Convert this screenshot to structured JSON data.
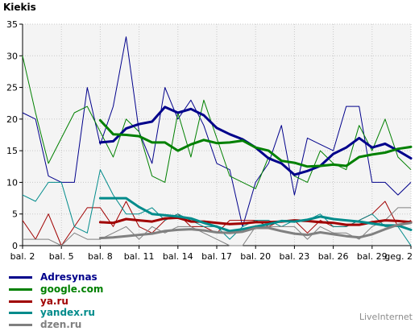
{
  "chart_data": {
    "type": "line",
    "title": "Kiekis",
    "xlabel": "",
    "ylabel": "Kiekis",
    "ylim": [
      0,
      35
    ],
    "yticks": [
      0,
      5,
      10,
      15,
      20,
      25,
      30,
      35
    ],
    "grid": true,
    "legend_position": "bottom-left",
    "x": [
      "bal. 2",
      "bal. 3",
      "bal. 4",
      "bal. 5",
      "bal. 6",
      "bal. 7",
      "bal. 8",
      "bal. 9",
      "bal. 10",
      "bal. 11",
      "bal. 12",
      "bal. 13",
      "bal. 14",
      "bal. 15",
      "bal. 16",
      "bal. 17",
      "bal. 18",
      "bal. 19",
      "bal. 20",
      "bal. 21",
      "bal. 22",
      "bal. 23",
      "bal. 24",
      "bal. 25",
      "bal. 26",
      "bal. 27",
      "bal. 28",
      "bal. 29",
      "bal. 30",
      "geg. 1",
      "geg. 2"
    ],
    "xtick_labels": [
      "bal. 2",
      "bal. 5",
      "bal. 8",
      "bal. 11",
      "bal. 14",
      "bal. 17",
      "bal. 20",
      "bal. 23",
      "bal. 26",
      "bal. 29",
      "geg. 2"
    ],
    "series": [
      {
        "name": "Adresynas",
        "color": "#00008b",
        "values": [
          21,
          20,
          11,
          10,
          10,
          25,
          16,
          22,
          33,
          18,
          13,
          25,
          20,
          23,
          19,
          13,
          12,
          3,
          10,
          13,
          19,
          8,
          17,
          16,
          15,
          22,
          22,
          10,
          10,
          8,
          10
        ],
        "avg": [
          null,
          null,
          null,
          null,
          null,
          null,
          16.3,
          16.5,
          18.5,
          19.2,
          19.6,
          21.9,
          21.0,
          21.6,
          20.6,
          18.6,
          17.6,
          16.8,
          15.5,
          13.8,
          13.0,
          11.2,
          11.8,
          12.6,
          14.5,
          15.5,
          17.0,
          15.5,
          16.1,
          15.0,
          13.8
        ]
      },
      {
        "name": "google.com",
        "color": "#008000",
        "values": [
          30,
          21,
          13,
          17,
          21,
          22,
          18,
          14,
          20,
          18,
          11,
          10,
          21,
          14,
          23,
          17,
          11,
          10,
          9,
          14,
          13,
          11,
          10,
          15,
          13,
          12,
          19,
          15,
          20,
          14,
          12
        ],
        "avg": [
          null,
          null,
          null,
          null,
          null,
          null,
          19.8,
          17.6,
          17.5,
          17.3,
          16.3,
          16.3,
          15.0,
          16.0,
          16.7,
          16.2,
          16.3,
          16.6,
          15.5,
          15.0,
          13.4,
          13.1,
          12.5,
          12.6,
          12.8,
          12.6,
          14.0,
          14.4,
          14.7,
          15.3,
          15.6
        ]
      },
      {
        "name": "ya.ru",
        "color": "#a00000",
        "values": [
          4,
          1,
          5,
          0,
          3,
          6,
          6,
          3,
          7,
          3,
          2,
          4,
          5,
          3,
          3,
          2,
          4,
          4,
          4,
          3,
          4,
          4,
          2,
          4,
          3,
          3,
          4,
          5,
          7,
          3,
          4
        ],
        "avg": [
          null,
          null,
          null,
          null,
          null,
          null,
          3.7,
          3.6,
          4.2,
          4.0,
          3.8,
          4.3,
          4.4,
          3.8,
          3.8,
          3.6,
          3.4,
          3.5,
          3.7,
          3.7,
          3.8,
          4.0,
          3.9,
          3.7,
          3.6,
          3.3,
          3.3,
          3.7,
          4.0,
          3.9,
          3.7
        ]
      },
      {
        "name": "yandex.ru",
        "color": "#008b8b",
        "values": [
          8,
          7,
          10,
          10,
          3,
          2,
          12,
          8,
          5,
          5,
          6,
          4,
          5,
          4,
          3,
          3,
          1,
          3,
          4,
          4,
          3,
          4,
          4,
          5,
          3,
          3,
          4,
          5,
          3,
          3,
          0
        ],
        "avg": [
          null,
          null,
          null,
          null,
          null,
          null,
          7.5,
          7.5,
          7.5,
          6.1,
          5.0,
          4.8,
          4.6,
          4.3,
          3.6,
          3.0,
          2.3,
          2.6,
          3.0,
          3.4,
          3.9,
          3.8,
          4.1,
          4.6,
          4.2,
          4.0,
          3.8,
          3.5,
          3.2,
          3.2,
          2.5
        ]
      },
      {
        "name": "dzen.ru",
        "color": "#808080",
        "values": [
          1,
          1,
          1,
          0,
          2,
          1,
          1,
          2,
          3,
          1,
          3,
          2,
          3,
          3,
          2,
          1,
          0,
          0,
          3,
          3,
          3,
          3,
          1,
          3,
          2,
          2,
          1,
          3,
          4,
          6,
          6
        ],
        "avg": [
          null,
          null,
          null,
          null,
          null,
          null,
          1.2,
          1.3,
          1.5,
          1.7,
          1.9,
          2.3,
          2.5,
          2.6,
          2.4,
          2.1,
          2.0,
          2.2,
          2.8,
          2.8,
          2.3,
          1.9,
          1.7,
          2.1,
          1.8,
          1.5,
          1.3,
          1.8,
          2.6,
          3.3,
          3.6
        ]
      }
    ]
  },
  "watermark": "LiveInternet"
}
